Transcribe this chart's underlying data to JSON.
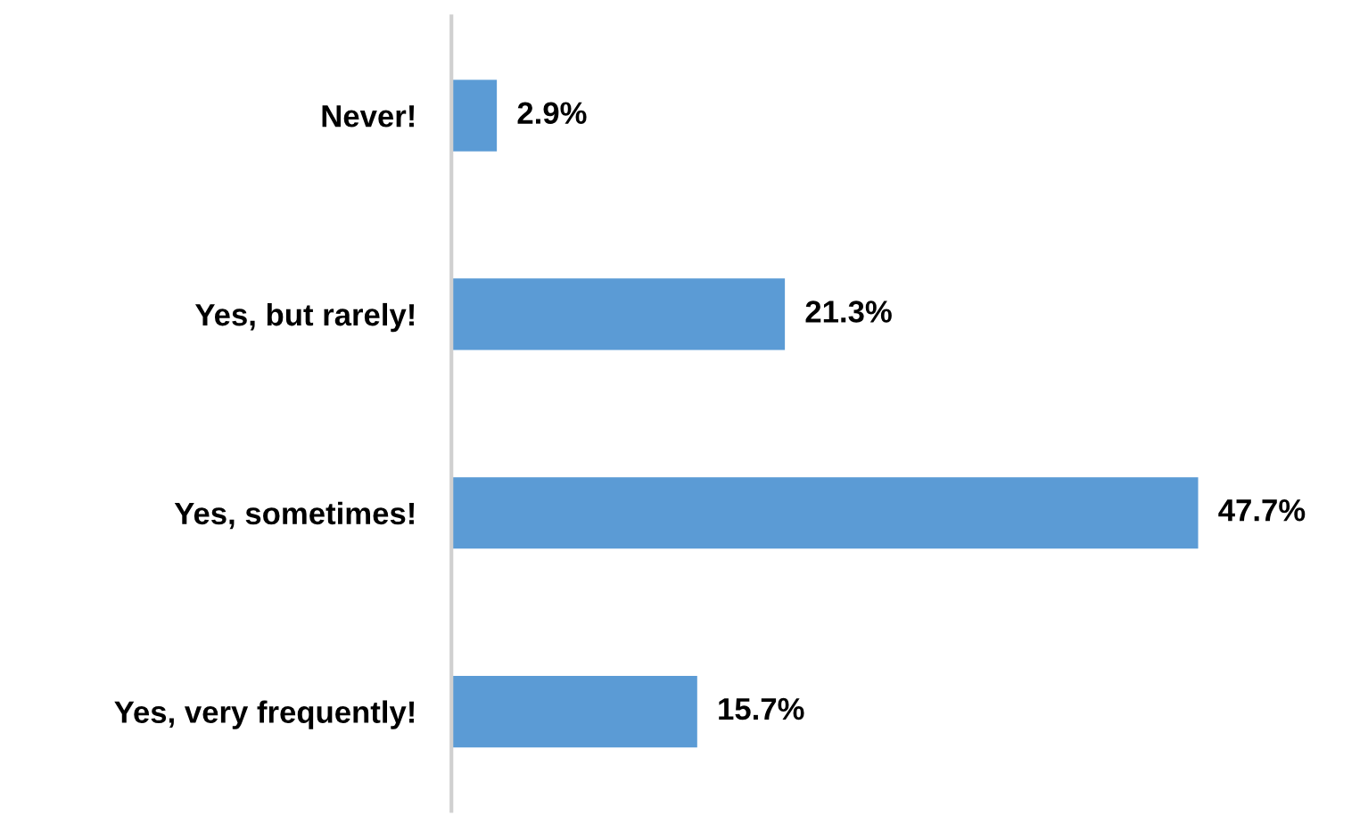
{
  "chart_data": {
    "type": "bar",
    "orientation": "horizontal",
    "categories": [
      "Never!",
      "Yes, but rarely!",
      "Yes, sometimes!",
      "Yes, very frequently!"
    ],
    "values": [
      2.9,
      21.3,
      47.7,
      15.7
    ],
    "value_labels": [
      "2.9%",
      "21.3%",
      "47.7%",
      "15.7%"
    ],
    "color": "#5b9bd5"
  }
}
